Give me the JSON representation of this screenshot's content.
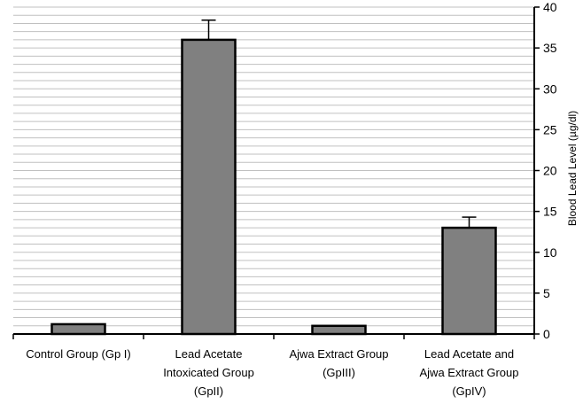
{
  "chart_data": {
    "type": "bar",
    "categories": [
      [
        "Control Group (Gp I)"
      ],
      [
        "Lead Acetate",
        "Intoxicated Group",
        "(GpII)"
      ],
      [
        "Ajwa Extract Group",
        "(GpIII)"
      ],
      [
        "Lead Acetate and",
        "Ajwa Extract Group",
        "(GpIV)"
      ]
    ],
    "values": [
      1.2,
      36.0,
      1.0,
      13.0
    ],
    "error_bars": [
      0,
      2.4,
      0,
      1.3
    ],
    "ylabel": "Blood Lead Level  (µg/dl)",
    "ylim": [
      0,
      40
    ],
    "yticks": [
      0,
      5,
      10,
      15,
      20,
      25,
      30,
      35,
      40
    ],
    "y_axis_side": "right",
    "grid": true,
    "colors": {
      "bar": "#808080",
      "bar_edge": "#000000",
      "grid": "#c0c0c0"
    }
  }
}
